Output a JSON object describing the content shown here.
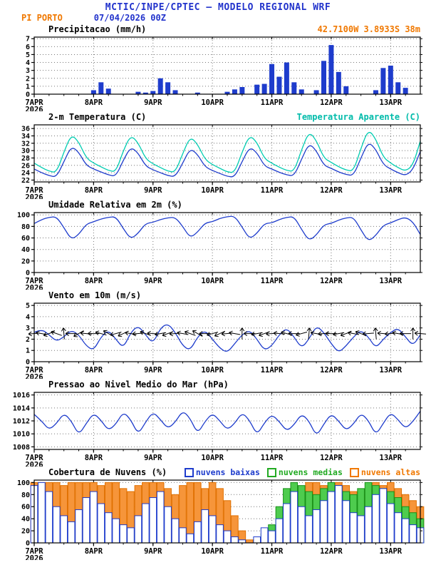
{
  "header": {
    "title": "MCTIC/INPE/CPTEC — MODELO REGIONAL WRF",
    "station": "PI PORTO",
    "run": "07/04/2026 00Z",
    "coords": "42.7100W 3.8933S 38m"
  },
  "colors": {
    "header_blue": "#2233cc",
    "orange": "#f07800",
    "line_blue": "#1e3ccc",
    "cyan": "#00bbaa",
    "green": "#22aa22",
    "black": "#000000"
  },
  "chart_data": {
    "type": "meteogram",
    "x_hours_step": 3,
    "x_max": 156,
    "day_labels": [
      "7APR",
      "8APR",
      "9APR",
      "10APR",
      "11APR",
      "12APR",
      "13APR"
    ],
    "year_label": "2026",
    "panels": [
      {
        "id": "precipitation",
        "title": "Precipitacao (mm/h)",
        "height": 80,
        "ylim": [
          0,
          7.2
        ],
        "yticks": [
          0,
          1,
          2,
          3,
          4,
          5,
          6,
          7
        ],
        "series": [
          {
            "name": "precipitacao",
            "type": "bar",
            "color": "#1e3ccc",
            "values": [
              0,
              0,
              0,
              0,
              0,
              0,
              0,
              0,
              0.5,
              1.5,
              0.7,
              0,
              0,
              0,
              0.3,
              0.2,
              0.4,
              2.0,
              1.5,
              0.5,
              0,
              0,
              0.2,
              0,
              0,
              0,
              0.3,
              0.6,
              0.9,
              0,
              1.2,
              1.3,
              3.8,
              2.2,
              4.0,
              1.5,
              0.6,
              0,
              0.5,
              4.2,
              6.2,
              2.8,
              1.0,
              0,
              0,
              0,
              0.5,
              3.3,
              3.6,
              1.5,
              0.8,
              0,
              0
            ]
          }
        ]
      },
      {
        "id": "temperature",
        "title": "2-m Temperatura (C)",
        "right_label": "Temperatura Aparente (C)",
        "height": 80,
        "ylim": [
          21.5,
          37
        ],
        "yticks": [
          22,
          24,
          26,
          28,
          30,
          32,
          34,
          36
        ],
        "series": [
          {
            "name": "temperatura-2m",
            "type": "line",
            "color": "#1e3ccc",
            "values": [
              25.0,
              24.0,
              23.2,
              22.8,
              27.0,
              31.2,
              29.6,
              26.0,
              25.0,
              24.2,
              23.4,
              23.0,
              27.4,
              31.0,
              29.4,
              25.8,
              24.8,
              24.0,
              23.2,
              22.9,
              26.6,
              30.6,
              29.0,
              25.6,
              24.6,
              23.8,
              23.0,
              22.8,
              27.0,
              31.0,
              29.5,
              25.8,
              25.0,
              24.1,
              23.4,
              23.1,
              27.6,
              32.0,
              30.0,
              26.0,
              25.2,
              24.2,
              23.5,
              23.2,
              28.0,
              32.4,
              30.4,
              26.2,
              25.0,
              24.0,
              23.2,
              24.8,
              29.8
            ]
          },
          {
            "name": "temperatura-aparente",
            "type": "line",
            "color": "#00ccb1",
            "values": [
              26.6,
              25.4,
              24.4,
              24.0,
              29.6,
              34.4,
              32.4,
              28.0,
              26.6,
              25.6,
              24.6,
              24.2,
              30.0,
              34.2,
              32.2,
              27.8,
              26.4,
              25.4,
              24.4,
              24.1,
              29.2,
              33.8,
              31.8,
              27.6,
              26.2,
              25.2,
              24.2,
              24.0,
              29.6,
              34.2,
              32.3,
              27.8,
              26.6,
              25.5,
              24.6,
              24.3,
              30.2,
              35.2,
              32.8,
              28.0,
              26.8,
              25.6,
              24.7,
              24.4,
              30.6,
              35.8,
              33.2,
              28.2,
              26.6,
              25.4,
              24.4,
              26.0,
              32.6
            ]
          }
        ]
      },
      {
        "id": "humidity",
        "title": "Umidade Relativa em 2m (%)",
        "height": 84,
        "ylim": [
          0,
          104
        ],
        "yticks": [
          0,
          20,
          40,
          60,
          80,
          100
        ],
        "series": [
          {
            "name": "umidade-relativa",
            "type": "line",
            "color": "#1e3ccc",
            "values": [
              85,
              92,
              96,
              97,
              78,
              57,
              66,
              84,
              88,
              93,
              96,
              97,
              76,
              58,
              68,
              85,
              87,
              92,
              95,
              96,
              80,
              60,
              70,
              86,
              88,
              94,
              97,
              98,
              79,
              58,
              68,
              85,
              86,
              92,
              96,
              97,
              75,
              55,
              65,
              83,
              85,
              91,
              95,
              96,
              74,
              54,
              64,
              82,
              86,
              92,
              96,
              88,
              66
            ]
          }
        ]
      },
      {
        "id": "wind",
        "title": "Vento em 10m (m/s)",
        "height": 82,
        "ylim": [
          0,
          5.2
        ],
        "yticks": [
          0,
          1,
          2,
          3,
          4,
          5
        ],
        "series": [
          {
            "name": "velocidade-vento",
            "type": "line",
            "color": "#1e3ccc",
            "values": [
              2.6,
              2.9,
              2.4,
              1.8,
              2.2,
              2.8,
              2.4,
              1.4,
              1.0,
              2.2,
              2.8,
              2.0,
              1.2,
              2.6,
              3.2,
              2.4,
              1.6,
              3.0,
              3.4,
              2.6,
              1.4,
              1.0,
              2.2,
              2.8,
              2.0,
              1.2,
              0.8,
              1.6,
              2.4,
              2.8,
              2.0,
              1.0,
              1.4,
              2.4,
              3.0,
              2.2,
              1.2,
              2.0,
              3.2,
              2.6,
              1.6,
              0.8,
              1.4,
              2.2,
              2.8,
              2.2,
              1.2,
              2.0,
              2.6,
              3.0,
              2.2,
              1.4,
              2.4
            ]
          },
          {
            "name": "vetores-vento",
            "type": "vectors",
            "color": "#000000",
            "y": 2.5,
            "angles": [
              185,
              170,
              200,
              160,
              95,
              180,
              210,
              175,
              180,
              165,
              150,
              195,
              205,
              170,
              185,
              160,
              175,
              190,
              200,
              185,
              170,
              160,
              150,
              180,
              195,
              205,
              185,
              170,
              90,
              180,
              190,
              200,
              185,
              175,
              165,
              180,
              195,
              85,
              170,
              185,
              180,
              190,
              200,
              170,
              160,
              185,
              95,
              175,
              185,
              170,
              180,
              90,
              175
            ]
          }
        ]
      },
      {
        "id": "pressure",
        "title": "Pressao ao Nivel Medio do Mar (hPa)",
        "height": 80,
        "ylim": [
          1007.6,
          1016.4
        ],
        "yticks": [
          1008,
          1010,
          1012,
          1014,
          1016
        ],
        "series": [
          {
            "name": "pressao-nivel-mar",
            "type": "line",
            "color": "#1e3ccc",
            "values": [
              1013.0,
              1012.0,
              1010.6,
              1011.6,
              1013.2,
              1012.0,
              1009.8,
              1011.6,
              1013.2,
              1012.1,
              1010.5,
              1011.5,
              1013.4,
              1012.2,
              1009.9,
              1011.8,
              1013.4,
              1012.2,
              1010.8,
              1011.8,
              1013.6,
              1012.4,
              1010.0,
              1011.9,
              1013.2,
              1012.0,
              1010.6,
              1011.6,
              1013.3,
              1012.1,
              1009.8,
              1011.7,
              1013.0,
              1011.9,
              1010.4,
              1011.4,
              1013.1,
              1012.0,
              1009.6,
              1011.5,
              1013.1,
              1012.0,
              1010.5,
              1011.5,
              1013.2,
              1012.1,
              1009.8,
              1011.6,
              1013.3,
              1012.2,
              1010.8,
              1011.9,
              1013.5
            ]
          }
        ]
      },
      {
        "id": "clouds",
        "title": "Cobertura de Nuvens (%)",
        "height": 88,
        "ylim": [
          0,
          104
        ],
        "yticks": [
          0,
          20,
          40,
          60,
          80,
          100
        ],
        "legend": [
          {
            "label": "nuvens baixas",
            "color": "#1e3ccc"
          },
          {
            "label": "nuvens medias",
            "color": "#22aa22"
          },
          {
            "label": "nuvens altas",
            "color": "#f07800"
          }
        ],
        "series": [
          {
            "name": "nuvens-altas",
            "type": "cbar",
            "stroke": "#e07000",
            "fill": "#f6953a",
            "values": [
              100,
              100,
              100,
              100,
              95,
              100,
              100,
              100,
              100,
              95,
              100,
              100,
              90,
              85,
              95,
              100,
              100,
              100,
              90,
              80,
              95,
              100,
              100,
              90,
              100,
              90,
              70,
              45,
              20,
              5,
              0,
              0,
              0,
              10,
              40,
              70,
              90,
              100,
              100,
              95,
              90,
              100,
              95,
              85,
              80,
              90,
              100,
              95,
              100,
              90,
              80,
              70,
              60
            ]
          },
          {
            "name": "nuvens-medias",
            "type": "cbar",
            "stroke": "#189018",
            "fill": "#4ecc4e",
            "values": [
              0,
              0,
              5,
              10,
              0,
              0,
              0,
              5,
              0,
              10,
              35,
              15,
              5,
              0,
              0,
              0,
              0,
              0,
              5,
              0,
              0,
              0,
              0,
              0,
              0,
              0,
              0,
              0,
              0,
              0,
              5,
              15,
              30,
              60,
              90,
              100,
              95,
              85,
              80,
              90,
              100,
              95,
              85,
              80,
              90,
              100,
              95,
              90,
              85,
              75,
              60,
              50,
              40
            ]
          },
          {
            "name": "nuvens-baixas",
            "type": "cbar",
            "stroke": "#1e3ccc",
            "fill": "#ffffff",
            "values": [
              95,
              100,
              85,
              60,
              45,
              35,
              55,
              75,
              85,
              65,
              50,
              40,
              30,
              25,
              45,
              65,
              75,
              85,
              60,
              40,
              25,
              15,
              35,
              55,
              45,
              30,
              20,
              10,
              5,
              0,
              10,
              25,
              20,
              40,
              65,
              85,
              60,
              45,
              55,
              70,
              85,
              95,
              70,
              50,
              45,
              60,
              80,
              90,
              65,
              50,
              40,
              30,
              25
            ]
          }
        ]
      }
    ]
  }
}
